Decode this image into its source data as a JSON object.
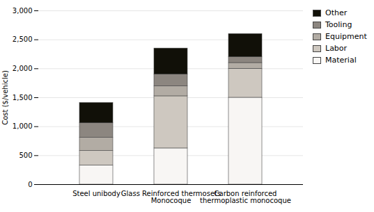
{
  "chart_data": {
    "type": "bar",
    "stacked": true,
    "categories": [
      "Steel unibody",
      "Glass Reinforced thermosets\nMonocoque",
      "Carbon reinforced\nthermoplastic monocoque"
    ],
    "series": [
      {
        "name": "Material",
        "color": "#f8f6f4",
        "values": [
          330,
          625,
          1500
        ]
      },
      {
        "name": "Labor",
        "color": "#cec8c0",
        "values": [
          250,
          900,
          500
        ]
      },
      {
        "name": "Equipment",
        "color": "#b2aca4",
        "values": [
          230,
          175,
          100
        ]
      },
      {
        "name": "Tooling",
        "color": "#8c8680",
        "values": [
          250,
          200,
          100
        ]
      },
      {
        "name": "Other",
        "color": "#111008",
        "values": [
          350,
          450,
          400
        ]
      }
    ],
    "ylabel": "Cost ($/vehicle)",
    "ylim": [
      0,
      3000
    ],
    "yticks": [
      0,
      500,
      1000,
      1500,
      2000,
      2500,
      3000
    ],
    "grid": true,
    "legend": "upper right"
  }
}
